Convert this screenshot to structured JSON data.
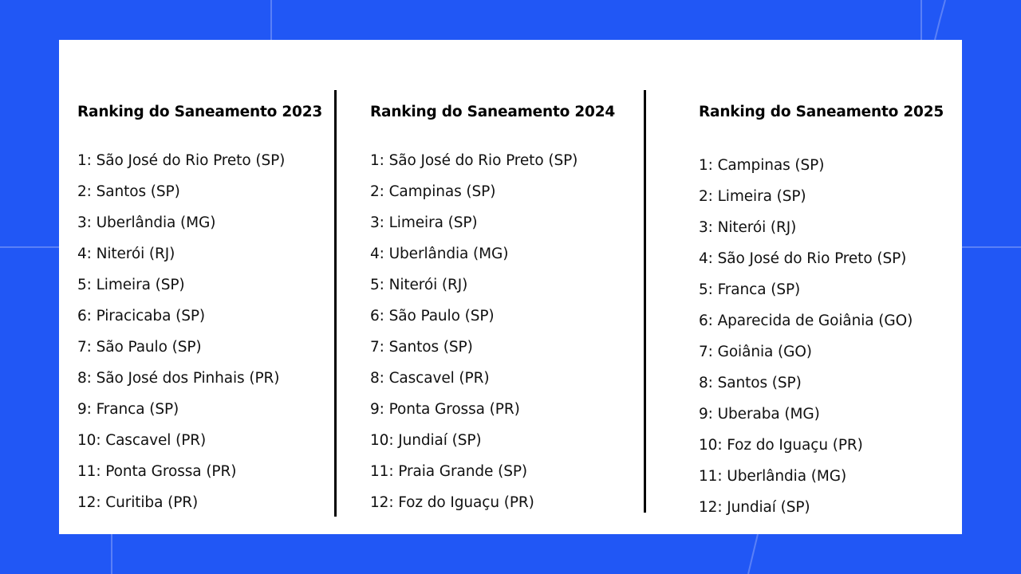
{
  "columns": [
    {
      "title": "Ranking do Saneamento 2023",
      "items": [
        "1: São José do Rio Preto (SP)",
        "2: Santos (SP)",
        "3: Uberlândia (MG)",
        "4: Niterói (RJ)",
        "5: Limeira (SP)",
        "6: Piracicaba (SP)",
        "7: São Paulo (SP)",
        "8: São José dos Pinhais (PR)",
        "9: Franca (SP)",
        "10: Cascavel (PR)",
        "11: Ponta Grossa (PR)",
        "12: Curitiba (PR)"
      ]
    },
    {
      "title": "Ranking do Saneamento 2024",
      "items": [
        "1: São José do Rio Preto (SP)",
        "2: Campinas (SP)",
        "3: Limeira (SP)",
        "4: Uberlândia (MG)",
        "5: Niterói (RJ)",
        "6: São Paulo (SP)",
        "7: Santos (SP)",
        "8: Cascavel (PR)",
        "9: Ponta Grossa (PR)",
        "10: Jundiaí (SP)",
        "11: Praia Grande (SP)",
        "12: Foz do Iguaçu (PR)"
      ]
    },
    {
      "title": "Ranking do Saneamento 2025",
      "items": [
        "1: Campinas (SP)",
        "2: Limeira (SP)",
        "3: Niterói (RJ)",
        "4: São José do Rio Preto (SP)",
        "5: Franca (SP)",
        "6: Aparecida de Goiânia (GO)",
        "7: Goiânia (GO)",
        "8: Santos (SP)",
        "9: Uberaba (MG)",
        "10: Foz do Iguaçu (PR)",
        "11: Uberlândia (MG)",
        "12: Jundiaí (SP)"
      ]
    }
  ],
  "colors": {
    "background": "#2157f5",
    "card": "#ffffff",
    "text": "#111111"
  }
}
